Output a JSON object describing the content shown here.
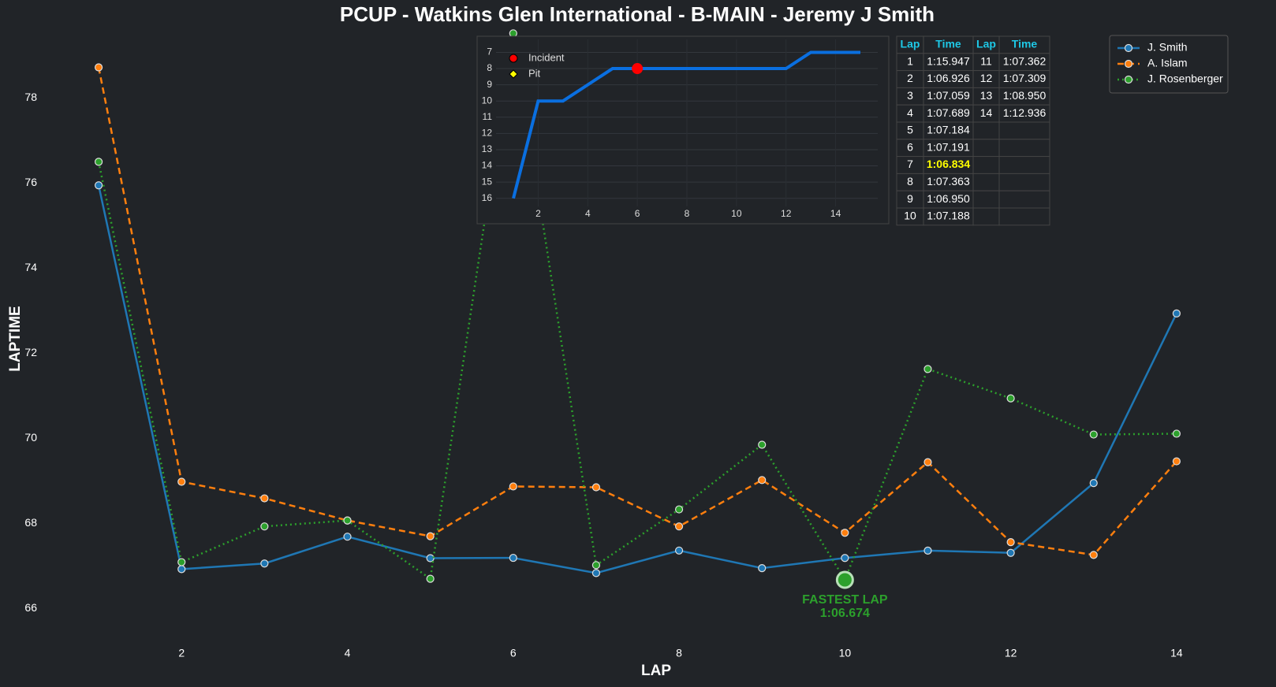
{
  "chart_data": [
    {
      "type": "line",
      "title": "PCUP - Watkins Glen International - B-MAIN - Jeremy J Smith",
      "x_label": "LAP",
      "y_label": "LAPTIME",
      "x": [
        1,
        2,
        3,
        4,
        5,
        6,
        7,
        8,
        9,
        10,
        11,
        12,
        13,
        14
      ],
      "xlim": [
        0.4,
        14.6
      ],
      "xticks": [
        2,
        4,
        6,
        8,
        10,
        12,
        14
      ],
      "ylim": [
        65.6,
        79.6
      ],
      "yticks": [
        66,
        68,
        70,
        72,
        74,
        76,
        78
      ],
      "legend": "upper right",
      "grid": false,
      "series": [
        {
          "name": "J. Smith",
          "color": "#1f77b4",
          "dash": "solid",
          "values": [
            75.947,
            66.926,
            67.059,
            67.689,
            67.184,
            67.191,
            66.834,
            67.363,
            66.95,
            67.188,
            67.362,
            67.309,
            68.95,
            72.936
          ]
        },
        {
          "name": "A. Islam",
          "color": "#ff7f0e",
          "dash": "dashed",
          "values": [
            78.72,
            68.98,
            68.59,
            68.07,
            67.7,
            68.87,
            68.85,
            67.93,
            69.02,
            67.78,
            69.44,
            67.56,
            67.26,
            69.46
          ]
        },
        {
          "name": "J. Rosenberger",
          "color": "#2ca02c",
          "dash": "dotted",
          "values": [
            76.5,
            67.09,
            67.93,
            68.07,
            66.7,
            79.52,
            67.02,
            68.33,
            69.85,
            66.674,
            71.63,
            70.94,
            70.09,
            70.11
          ]
        }
      ],
      "annotation": {
        "text": [
          "FASTEST LAP",
          "1:06.674"
        ],
        "x": 10,
        "y": 66.674,
        "color": "#2ca02c"
      }
    },
    {
      "type": "line",
      "color": "#0a6fe0",
      "x": [
        1,
        2,
        3,
        4,
        5,
        6,
        7,
        8,
        9,
        10,
        11,
        12,
        13,
        14,
        15
      ],
      "values": [
        16,
        10,
        10,
        9,
        8,
        8,
        8,
        8,
        8,
        8,
        8,
        8,
        7,
        7,
        7
      ],
      "xlim": [
        0.3,
        15.7
      ],
      "xticks": [
        2,
        4,
        6,
        8,
        10,
        12,
        14
      ],
      "ylim": [
        16.5,
        6.2
      ],
      "yticks": [
        7,
        8,
        9,
        10,
        11,
        12,
        13,
        14,
        15,
        16
      ],
      "grid": true,
      "markers": [
        {
          "name": "Incident",
          "color": "#ff0000",
          "shape": "circle",
          "x": [
            6
          ],
          "values": [
            8
          ]
        },
        {
          "name": "Pit",
          "color": "#ffff00",
          "shape": "diamond",
          "x": [],
          "values": []
        }
      ]
    }
  ],
  "table": {
    "columns": [
      "Lap",
      "Time",
      "Lap",
      "Time"
    ],
    "rows": [
      [
        "1",
        "1:15.947",
        "11",
        "1:07.362"
      ],
      [
        "2",
        "1:06.926",
        "12",
        "1:07.309"
      ],
      [
        "3",
        "1:07.059",
        "13",
        "1:08.950"
      ],
      [
        "4",
        "1:07.689",
        "14",
        "1:12.936"
      ],
      [
        "5",
        "1:07.184"
      ],
      [
        "6",
        "1:07.191"
      ],
      [
        "7",
        "1:06.834"
      ],
      [
        "8",
        "1:07.363"
      ],
      [
        "9",
        "1:06.950"
      ],
      [
        "10",
        "1:07.188"
      ]
    ]
  }
}
